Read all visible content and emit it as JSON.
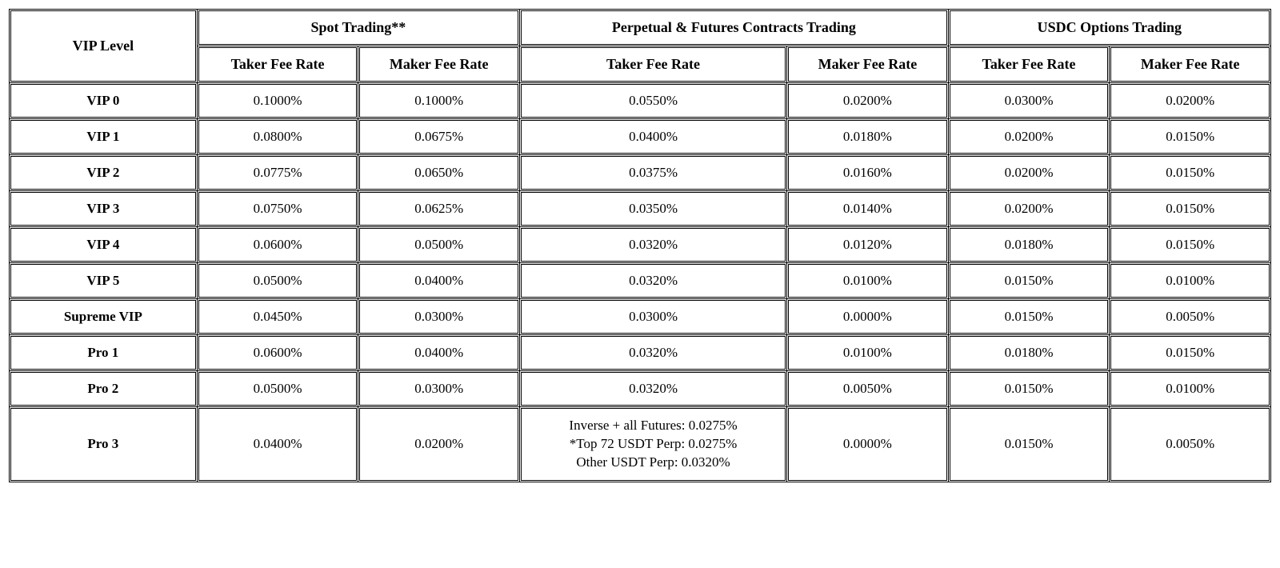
{
  "type": "table",
  "background_color": "#ffffff",
  "text_color": "#000000",
  "border_color": "#000000",
  "header_fontsize": 18,
  "cell_fontsize": 17,
  "columns": {
    "vip_level": "VIP Level",
    "groups": [
      {
        "label": "Spot Trading**",
        "taker": "Taker Fee Rate",
        "maker": "Maker Fee Rate"
      },
      {
        "label": "Perpetual & Futures Contracts Trading",
        "taker": "Taker Fee Rate",
        "maker": "Maker Fee Rate"
      },
      {
        "label": "USDC Options Trading",
        "taker": "Taker Fee Rate",
        "maker": "Maker Fee Rate"
      }
    ]
  },
  "rows": [
    {
      "level": "VIP 0",
      "spot_taker": "0.1000%",
      "spot_maker": "0.1000%",
      "perp_taker": "0.0550%",
      "perp_maker": "0.0200%",
      "opt_taker": "0.0300%",
      "opt_maker": "0.0200%"
    },
    {
      "level": "VIP 1",
      "spot_taker": "0.0800%",
      "spot_maker": "0.0675%",
      "perp_taker": "0.0400%",
      "perp_maker": "0.0180%",
      "opt_taker": "0.0200%",
      "opt_maker": "0.0150%"
    },
    {
      "level": "VIP 2",
      "spot_taker": "0.0775%",
      "spot_maker": "0.0650%",
      "perp_taker": "0.0375%",
      "perp_maker": "0.0160%",
      "opt_taker": "0.0200%",
      "opt_maker": "0.0150%"
    },
    {
      "level": "VIP 3",
      "spot_taker": "0.0750%",
      "spot_maker": "0.0625%",
      "perp_taker": "0.0350%",
      "perp_maker": "0.0140%",
      "opt_taker": "0.0200%",
      "opt_maker": "0.0150%"
    },
    {
      "level": "VIP 4",
      "spot_taker": "0.0600%",
      "spot_maker": "0.0500%",
      "perp_taker": "0.0320%",
      "perp_maker": "0.0120%",
      "opt_taker": "0.0180%",
      "opt_maker": "0.0150%"
    },
    {
      "level": "VIP 5",
      "spot_taker": "0.0500%",
      "spot_maker": "0.0400%",
      "perp_taker": "0.0320%",
      "perp_maker": "0.0100%",
      "opt_taker": "0.0150%",
      "opt_maker": "0.0100%"
    },
    {
      "level": "Supreme VIP",
      "spot_taker": "0.0450%",
      "spot_maker": "0.0300%",
      "perp_taker": "0.0300%",
      "perp_maker": "0.0000%",
      "opt_taker": "0.0150%",
      "opt_maker": "0.0050%"
    },
    {
      "level": "Pro 1",
      "spot_taker": "0.0600%",
      "spot_maker": "0.0400%",
      "perp_taker": "0.0320%",
      "perp_maker": "0.0100%",
      "opt_taker": "0.0180%",
      "opt_maker": "0.0150%"
    },
    {
      "level": "Pro 2",
      "spot_taker": "0.0500%",
      "spot_maker": "0.0300%",
      "perp_taker": "0.0320%",
      "perp_maker": "0.0050%",
      "opt_taker": "0.0150%",
      "opt_maker": "0.0100%"
    },
    {
      "level": "Pro 3",
      "spot_taker": "0.0400%",
      "spot_maker": "0.0200%",
      "perp_taker_multi": [
        "Inverse + all Futures: 0.0275%",
        "*Top 72 USDT Perp: 0.0275%",
        "Other USDT Perp: 0.0320%"
      ],
      "perp_maker": "0.0000%",
      "opt_taker": "0.0150%",
      "opt_maker": "0.0050%"
    }
  ],
  "col_widths_pct": [
    14,
    12,
    12,
    20,
    12,
    12,
    12
  ]
}
